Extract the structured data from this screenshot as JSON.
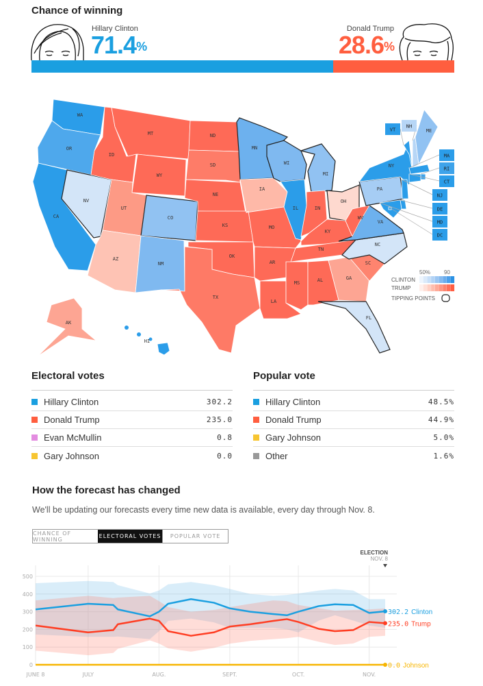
{
  "header": {
    "title": "Chance of winning",
    "clinton": {
      "name": "Hillary Clinton",
      "value": "71.4",
      "unit": "%",
      "probability": 71.4,
      "color": "#1a9fe0"
    },
    "trump": {
      "name": "Donald Trump",
      "value": "28.6",
      "unit": "%",
      "probability": 28.6,
      "color": "#ff5e3f"
    }
  },
  "map": {
    "states": [
      {
        "code": "WA",
        "color": "#2b9de9"
      },
      {
        "code": "OR",
        "color": "#4ea8ec"
      },
      {
        "code": "CA",
        "color": "#2b9de9"
      },
      {
        "code": "NV",
        "color": "#d3e5f8",
        "tipping_point": true
      },
      {
        "code": "ID",
        "color": "#fe6a57"
      },
      {
        "code": "MT",
        "color": "#fe6a57"
      },
      {
        "code": "WY",
        "color": "#fe6a57"
      },
      {
        "code": "UT",
        "color": "#fd9a85"
      },
      {
        "code": "CO",
        "color": "#91c2f2",
        "tipping_point": true
      },
      {
        "code": "AZ",
        "color": "#fec3b4"
      },
      {
        "code": "NM",
        "color": "#7fb9f0"
      },
      {
        "code": "ND",
        "color": "#fe6a57"
      },
      {
        "code": "SD",
        "color": "#fe7c68"
      },
      {
        "code": "NE",
        "color": "#fe6a57"
      },
      {
        "code": "KS",
        "color": "#fe6a57"
      },
      {
        "code": "OK",
        "color": "#fe6a57"
      },
      {
        "code": "TX",
        "color": "#fe7a66"
      },
      {
        "code": "MN",
        "color": "#6db1ee",
        "tipping_point": true
      },
      {
        "code": "IA",
        "color": "#feb9a8"
      },
      {
        "code": "MO",
        "color": "#fe6a57"
      },
      {
        "code": "AR",
        "color": "#fe6a57"
      },
      {
        "code": "LA",
        "color": "#fe6a57"
      },
      {
        "code": "WI",
        "color": "#7fb9f0",
        "tipping_point": true
      },
      {
        "code": "IL",
        "color": "#2b9de9"
      },
      {
        "code": "MI",
        "color": "#91c2f2",
        "tipping_point": true
      },
      {
        "code": "IN",
        "color": "#fe6a57"
      },
      {
        "code": "OH",
        "color": "#fed9cf",
        "tipping_point": true
      },
      {
        "code": "KY",
        "color": "#fe6a57"
      },
      {
        "code": "TN",
        "color": "#fe6a57"
      },
      {
        "code": "MS",
        "color": "#fe6a57"
      },
      {
        "code": "AL",
        "color": "#fe6a57"
      },
      {
        "code": "GA",
        "color": "#fda593"
      },
      {
        "code": "SC",
        "color": "#fe846f"
      },
      {
        "code": "NC",
        "color": "#d3e5f8",
        "tipping_point": true
      },
      {
        "code": "VA",
        "color": "#6db1ee",
        "tipping_point": true
      },
      {
        "code": "WV",
        "color": "#fe6a57"
      },
      {
        "code": "FL",
        "color": "#d3e5f8",
        "tipping_point": true
      },
      {
        "code": "PA",
        "color": "#a6cdf4",
        "tipping_point": true
      },
      {
        "code": "NY",
        "color": "#2b9de9"
      },
      {
        "code": "VT",
        "color": "#2b9de9"
      },
      {
        "code": "NH",
        "color": "#b7d6f6"
      },
      {
        "code": "ME",
        "color": "#91c2f2"
      },
      {
        "code": "MA",
        "color": "#2b9de9"
      },
      {
        "code": "RI",
        "color": "#3ea3ea"
      },
      {
        "code": "CT",
        "color": "#2b9de9"
      },
      {
        "code": "NJ",
        "color": "#2b9de9"
      },
      {
        "code": "DE",
        "color": "#2b9de9"
      },
      {
        "code": "MD",
        "color": "#2b9de9"
      },
      {
        "code": "DC",
        "color": "#2b9de9"
      },
      {
        "code": "AK",
        "color": "#fda593"
      },
      {
        "code": "HI",
        "color": "#2b9de9"
      }
    ],
    "legend": {
      "low_label": "50%",
      "high_label": "90",
      "clinton_label": "CLINTON",
      "trump_label": "TRUMP",
      "tipping_label": "TIPPING POINTS",
      "clinton_scale": [
        "#eef5fd",
        "#dbeafa",
        "#c8dff8",
        "#b2d3f5",
        "#9bc6f2",
        "#84b9ef",
        "#6aacec",
        "#4c9fe9",
        "#2b92e4"
      ],
      "trump_scale": [
        "#fff0ec",
        "#ffe0d8",
        "#ffcfc3",
        "#ffbdae",
        "#ffaa98",
        "#ff9783",
        "#ff836d",
        "#ff7058",
        "#ff5e43"
      ]
    }
  },
  "electoral": {
    "title": "Electoral votes",
    "rows": [
      {
        "name": "Hillary Clinton",
        "value": "302.2",
        "color": "#1a9fe0"
      },
      {
        "name": "Donald Trump",
        "value": "235.0",
        "color": "#ff5e3f"
      },
      {
        "name": "Evan McMullin",
        "value": "0.8",
        "color": "#e38ce0"
      },
      {
        "name": "Gary Johnson",
        "value": "0.0",
        "color": "#f7c531"
      }
    ]
  },
  "popular": {
    "title": "Popular vote",
    "rows": [
      {
        "name": "Hillary Clinton",
        "value": "48.5%",
        "color": "#1a9fe0"
      },
      {
        "name": "Donald Trump",
        "value": "44.9%",
        "color": "#ff5e3f"
      },
      {
        "name": "Gary Johnson",
        "value": "5.0%",
        "color": "#f7c531"
      },
      {
        "name": "Other",
        "value": "1.6%",
        "color": "#999999"
      }
    ]
  },
  "forecast": {
    "title": "How the forecast has changed",
    "subtitle": "We'll be updating our forecasts every time new data is available, every day through Nov. 8.",
    "tabs": [
      {
        "label": "CHANCE OF WINNING",
        "active": false
      },
      {
        "label": "ELECTORAL VOTES",
        "active": true
      },
      {
        "label": "POPULAR VOTE",
        "active": false
      }
    ],
    "election_label": "ELECTION",
    "election_date": "NOV. 8"
  },
  "chart_data": {
    "type": "line",
    "x": [
      "06-08",
      "07-01",
      "07-12",
      "07-14",
      "07-28",
      "08-01",
      "08-05",
      "08-15",
      "08-25",
      "09-01",
      "09-10",
      "09-20",
      "09-26",
      "10-01",
      "10-10",
      "10-17",
      "10-25",
      "11-01",
      "11-08"
    ],
    "xticks": [
      "JUNE 8",
      "JULY",
      "AUG.",
      "SEPT.",
      "OCT.",
      "NOV."
    ],
    "xtick_dates": [
      "06-08",
      "07-01",
      "08-01",
      "09-01",
      "10-01",
      "11-01"
    ],
    "yticks": [
      "0",
      "100",
      "200",
      "300",
      "400",
      "500"
    ],
    "ylim": [
      0,
      560
    ],
    "grid": true,
    "series": [
      {
        "name": "Clinton",
        "color": "#1a9fe0",
        "end_label": "302.2",
        "values": [
          313,
          345,
          338,
          313,
          274,
          300,
          345,
          371,
          351,
          319,
          300,
          287,
          280,
          300,
          332,
          342,
          338,
          293,
          302.2
        ],
        "upper": [
          461,
          474,
          468,
          450,
          403,
          420,
          455,
          468,
          450,
          429,
          400,
          390,
          395,
          403,
          420,
          429,
          420,
          371,
          371
        ],
        "lower": [
          171,
          158,
          158,
          160,
          145,
          190,
          248,
          261,
          240,
          209,
          209,
          209,
          200,
          183,
          250,
          280,
          250,
          222,
          209
        ]
      },
      {
        "name": "Trump",
        "color": "#ff3d22",
        "end_label": "235.0",
        "values": [
          222,
          183,
          196,
          229,
          261,
          248,
          190,
          164,
          183,
          216,
          229,
          248,
          258,
          242,
          203,
          190,
          196,
          242,
          235.0
        ],
        "upper": [
          364,
          390,
          377,
          380,
          390,
          360,
          326,
          300,
          310,
          326,
          345,
          364,
          360,
          338,
          320,
          306,
          310,
          313,
          319
        ],
        "lower": [
          80,
          54,
          67,
          90,
          138,
          120,
          93,
          74,
          95,
          119,
          135,
          145,
          150,
          158,
          130,
          112,
          120,
          158,
          164
        ]
      },
      {
        "name": "Johnson",
        "color": "#f7b500",
        "end_label": "0.0",
        "values": [
          0,
          0,
          0,
          0,
          0,
          0,
          0,
          0,
          0,
          0,
          0,
          0,
          0,
          0,
          0,
          0,
          0,
          0,
          0
        ]
      }
    ]
  }
}
